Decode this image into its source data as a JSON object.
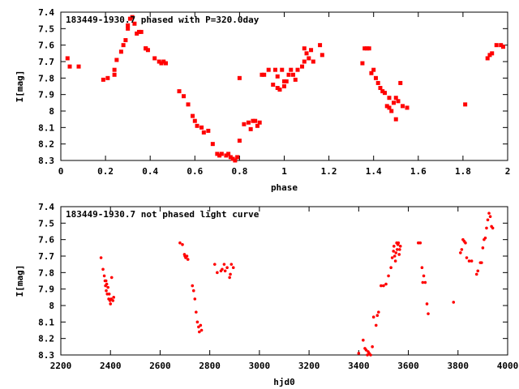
{
  "colors": {
    "points": "#ff0000",
    "axes": "#000000",
    "background": "#ffffff"
  },
  "chart_data": [
    {
      "type": "scatter",
      "title": "183449-1930.7 phased with P=320.0day",
      "xlabel": "phase",
      "ylabel": "I[mag]",
      "xlim": [
        0,
        2
      ],
      "ylim": [
        8.3,
        7.4
      ],
      "y_inverted": true,
      "x_ticks": [
        "0",
        "0.2",
        "0.4",
        "0.6",
        "0.8",
        "1",
        "1.2",
        "1.4",
        "1.6",
        "1.8",
        "2"
      ],
      "y_ticks": [
        "7.4",
        "7.5",
        "7.6",
        "7.7",
        "7.8",
        "7.9",
        "8",
        "8.1",
        "8.2",
        "8.3"
      ],
      "grid": false,
      "series": [
        {
          "x": [
            0.03,
            0.04,
            0.08,
            0.19,
            0.21,
            0.24,
            0.24,
            0.25,
            0.27,
            0.28,
            0.29,
            0.3,
            0.3,
            0.31,
            0.32,
            0.33,
            0.34,
            0.35,
            0.36,
            0.38,
            0.38,
            0.39,
            0.42,
            0.44,
            0.45,
            0.46,
            0.47,
            0.53,
            0.55,
            0.57,
            0.59,
            0.6,
            0.61,
            0.63,
            0.64,
            0.66,
            0.68,
            0.7,
            0.71,
            0.72,
            0.74,
            0.75,
            0.76,
            0.77,
            0.78,
            0.79,
            0.8,
            0.8,
            0.82,
            0.84,
            0.85,
            0.86,
            0.87,
            0.88,
            0.89,
            0.9,
            0.91,
            0.93,
            0.95,
            0.96,
            0.97,
            0.97,
            0.98,
            0.99,
            1.0,
            1.0,
            1.01,
            1.02,
            1.03,
            1.04,
            1.05,
            1.06,
            1.08,
            1.09,
            1.09,
            1.1,
            1.11,
            1.12,
            1.13,
            1.16,
            1.17,
            1.35,
            1.36,
            1.37,
            1.38,
            1.39,
            1.4,
            1.41,
            1.42,
            1.43,
            1.44,
            1.45,
            1.46,
            1.47,
            1.47,
            1.48,
            1.49,
            1.5,
            1.5,
            1.51,
            1.52,
            1.53,
            1.55,
            1.81,
            1.91,
            1.92,
            1.93,
            1.95,
            1.97,
            1.98
          ],
          "y": [
            7.68,
            7.73,
            7.73,
            7.81,
            7.8,
            7.78,
            7.75,
            7.69,
            7.64,
            7.6,
            7.57,
            7.5,
            7.48,
            7.44,
            7.43,
            7.47,
            7.53,
            7.52,
            7.52,
            7.62,
            7.62,
            7.63,
            7.68,
            7.7,
            7.71,
            7.7,
            7.71,
            7.88,
            7.91,
            7.96,
            8.03,
            8.06,
            8.09,
            8.1,
            8.13,
            8.12,
            8.2,
            8.26,
            8.27,
            8.26,
            8.27,
            8.26,
            8.28,
            8.29,
            8.3,
            8.28,
            8.18,
            7.8,
            8.08,
            8.07,
            8.11,
            8.06,
            8.06,
            8.09,
            8.07,
            7.78,
            7.78,
            7.75,
            7.84,
            7.75,
            7.86,
            7.79,
            7.87,
            7.75,
            7.82,
            7.85,
            7.82,
            7.78,
            7.75,
            7.78,
            7.81,
            7.75,
            7.73,
            7.62,
            7.7,
            7.65,
            7.68,
            7.63,
            7.7,
            7.6,
            7.66,
            7.71,
            7.62,
            7.62,
            7.62,
            7.77,
            7.75,
            7.8,
            7.83,
            7.86,
            7.88,
            7.89,
            7.97,
            7.98,
            7.92,
            8.0,
            7.95,
            8.05,
            7.92,
            7.94,
            7.83,
            7.97,
            7.98,
            7.96,
            7.68,
            7.66,
            7.65,
            7.6,
            7.6,
            7.61
          ]
        }
      ]
    },
    {
      "type": "scatter",
      "title": "183449-1930.7 not phased light curve",
      "xlabel": "hjd0",
      "ylabel": "I[mag]",
      "xlim": [
        2200,
        4000
      ],
      "ylim": [
        8.3,
        7.4
      ],
      "y_inverted": true,
      "x_ticks": [
        "2200",
        "2400",
        "2600",
        "2800",
        "3000",
        "3200",
        "3400",
        "3600",
        "3800",
        "4000"
      ],
      "y_ticks": [
        "7.4",
        "7.5",
        "7.6",
        "7.7",
        "7.8",
        "7.9",
        "8",
        "8.1",
        "8.2",
        "8.3"
      ],
      "grid": false,
      "series": [
        {
          "x": [
            2362,
            2370,
            2375,
            2378,
            2380,
            2382,
            2383,
            2385,
            2387,
            2390,
            2393,
            2395,
            2398,
            2400,
            2403,
            2405,
            2410,
            2413,
            2680,
            2690,
            2698,
            2700,
            2703,
            2708,
            2712,
            2730,
            2735,
            2740,
            2745,
            2750,
            2755,
            2758,
            2763,
            2767,
            2820,
            2830,
            2845,
            2850,
            2858,
            2862,
            2870,
            2880,
            2883,
            2887,
            2895,
            3400,
            3418,
            3425,
            3430,
            3435,
            3438,
            3442,
            3448,
            3455,
            3460,
            3470,
            3475,
            3480,
            3490,
            3500,
            3510,
            3520,
            3530,
            3535,
            3540,
            3542,
            3545,
            3548,
            3550,
            3553,
            3555,
            3558,
            3560,
            3563,
            3565,
            3568,
            3640,
            3648,
            3655,
            3658,
            3662,
            3668,
            3675,
            3680,
            3782,
            3810,
            3815,
            3820,
            3825,
            3830,
            3835,
            3845,
            3855,
            3875,
            3880,
            3890,
            3895,
            3900,
            3905,
            3910,
            3915,
            3920,
            3925,
            3930,
            3935,
            3940
          ],
          "y": [
            7.71,
            7.78,
            7.82,
            7.85,
            7.88,
            7.85,
            7.91,
            7.87,
            7.93,
            7.89,
            7.96,
            7.93,
            7.97,
            7.99,
            7.96,
            7.83,
            7.97,
            7.95,
            7.62,
            7.63,
            7.69,
            7.7,
            7.71,
            7.7,
            7.72,
            7.88,
            7.91,
            7.96,
            8.04,
            8.1,
            8.13,
            8.16,
            8.12,
            8.15,
            7.75,
            7.8,
            7.79,
            7.78,
            7.75,
            7.79,
            7.77,
            7.83,
            7.81,
            7.75,
            7.77,
            8.29,
            8.21,
            8.26,
            8.27,
            8.3,
            8.28,
            8.29,
            8.3,
            8.25,
            8.07,
            8.12,
            8.06,
            8.04,
            7.88,
            7.88,
            7.87,
            7.82,
            7.77,
            7.71,
            7.67,
            7.64,
            7.7,
            7.73,
            7.68,
            7.62,
            7.66,
            7.63,
            7.62,
            7.69,
            7.66,
            7.64,
            7.62,
            7.62,
            7.77,
            7.86,
            7.82,
            7.86,
            7.99,
            8.05,
            7.98,
            7.68,
            7.66,
            7.6,
            7.61,
            7.62,
            7.71,
            7.73,
            7.73,
            7.81,
            7.79,
            7.74,
            7.74,
            7.65,
            7.6,
            7.59,
            7.53,
            7.48,
            7.44,
            7.46,
            7.52,
            7.53
          ]
        }
      ]
    }
  ]
}
